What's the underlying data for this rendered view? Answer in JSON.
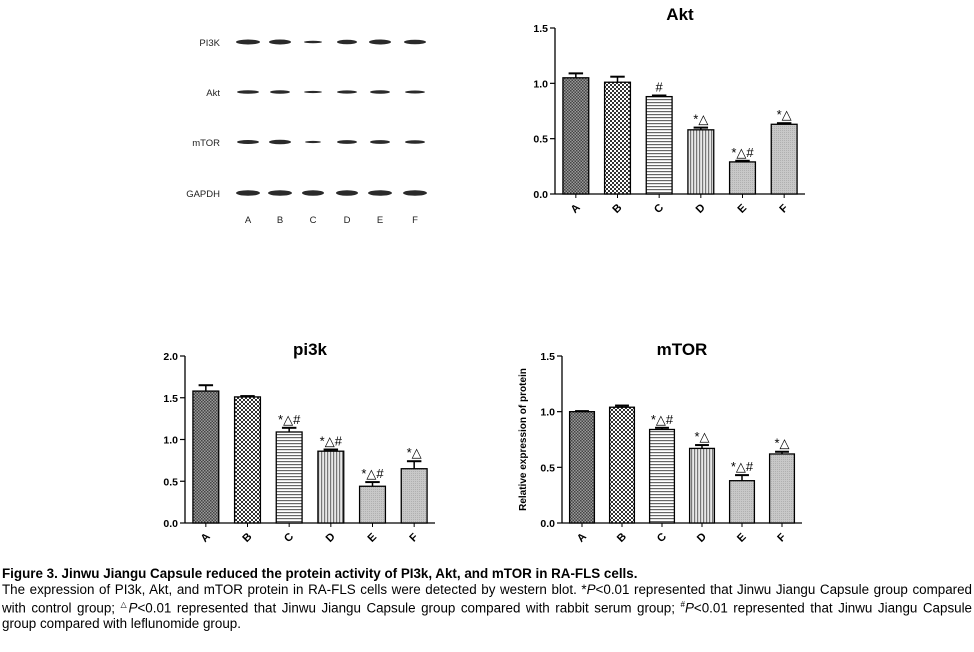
{
  "blot": {
    "rows": [
      "PI3K",
      "Akt",
      "mTOR",
      "GAPDH"
    ],
    "lanes": [
      "A",
      "B",
      "C",
      "D",
      "E",
      "F"
    ]
  },
  "chart_data": [
    {
      "id": "akt",
      "type": "bar",
      "title": "Akt",
      "ylabel": "",
      "categories": [
        "A",
        "B",
        "C",
        "D",
        "E",
        "F"
      ],
      "values": [
        1.05,
        1.01,
        0.88,
        0.58,
        0.29,
        0.63
      ],
      "errors": [
        0.04,
        0.05,
        0.01,
        0.02,
        0.01,
        0.01
      ],
      "annotations": [
        "",
        "",
        "#",
        "*△",
        "*△#",
        "*△"
      ],
      "ylim": [
        0,
        1.5
      ],
      "yticks": [
        "0.0",
        "0.5",
        "1.0",
        "1.5"
      ],
      "patterns": [
        "dense",
        "dots",
        "hlines",
        "vlines",
        "light",
        "light"
      ]
    },
    {
      "id": "pi3k",
      "type": "bar",
      "title": "pi3k",
      "ylabel": "",
      "categories": [
        "A",
        "B",
        "C",
        "D",
        "E",
        "F"
      ],
      "values": [
        1.58,
        1.51,
        1.09,
        0.86,
        0.44,
        0.65
      ],
      "errors": [
        0.07,
        0.01,
        0.05,
        0.02,
        0.05,
        0.09
      ],
      "annotations": [
        "",
        "",
        "*△#",
        "*△#",
        "*△#",
        "*△"
      ],
      "ylim": [
        0,
        2.0
      ],
      "yticks": [
        "0.0",
        "0.5",
        "1.0",
        "1.5",
        "2.0"
      ],
      "patterns": [
        "dense",
        "dots",
        "hlines",
        "vlines",
        "light",
        "light"
      ]
    },
    {
      "id": "mtor",
      "type": "bar",
      "title": "mTOR",
      "ylabel": "Relative expression of protein",
      "categories": [
        "A",
        "B",
        "C",
        "D",
        "E",
        "F"
      ],
      "values": [
        1.0,
        1.04,
        0.84,
        0.67,
        0.38,
        0.62
      ],
      "errors": [
        0.005,
        0.015,
        0.015,
        0.03,
        0.05,
        0.02
      ],
      "annotations": [
        "",
        "",
        "*△#",
        "*△",
        "*△#",
        "*△"
      ],
      "ylim": [
        0,
        1.5
      ],
      "yticks": [
        "0.0",
        "0.5",
        "1.0",
        "1.5"
      ],
      "patterns": [
        "dense",
        "dots",
        "hlines",
        "vlines",
        "light",
        "light"
      ]
    }
  ],
  "caption": {
    "title": "Figure 3. Jinwu Jiangu Capsule reduced the protein activity of PI3k, Akt, and mTOR in RA-FLS cells.",
    "body_line1": "The expression of PI3k, Akt, and mTOR protein in RA-FLS cells were detected by western blot. *",
    "p1": "P",
    "t1": "<0.01 represented that Jinwu Jiangu Capsule group compared with control group; ",
    "delta": "△",
    "p2": "P",
    "t2": "<0.01 represented that Jinwu Jiangu Capsule group compared with rabbit serum group; ",
    "hash": "#",
    "p3": "P",
    "t3": "<0.01 represented that Jinwu Jiangu Capsule group compared with leflunomide group."
  }
}
